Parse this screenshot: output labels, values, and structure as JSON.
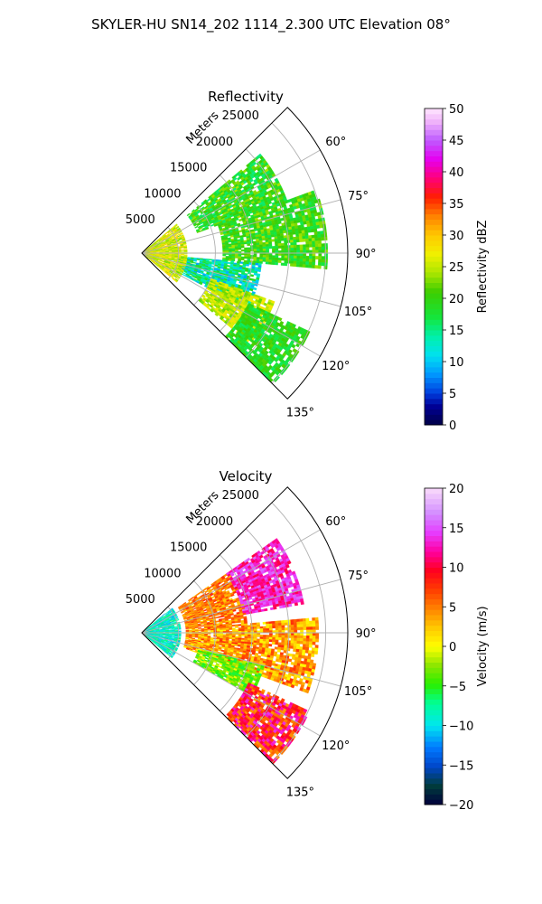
{
  "figure": {
    "title": "SKYLER-HU  SN14_202  1114_2.300 UTC Elevation 08°"
  },
  "chart_data": [
    {
      "type": "heatmap",
      "subtype": "polar-sector (PPI radar scan)",
      "title": "Reflectivity",
      "radial_axis_label": "Meters",
      "radial_ticks": [
        "5000",
        "10000",
        "15000",
        "20000",
        "25000"
      ],
      "radial_tick_values": [
        5000,
        10000,
        15000,
        20000,
        25000
      ],
      "rlim": [
        0,
        28000
      ],
      "angle_ticks": [
        "60°",
        "75°",
        "90°",
        "105°",
        "120°",
        "135°"
      ],
      "angle_tick_values": [
        60,
        75,
        90,
        105,
        120,
        135
      ],
      "angle_range_deg": [
        45,
        135
      ],
      "angle_convention": "compass degrees, clockwise from up",
      "grid": true,
      "colorbar": {
        "label": "Reflectivity dBZ",
        "ticks": [
          "0",
          "5",
          "10",
          "15",
          "20",
          "25",
          "30",
          "35",
          "40",
          "45",
          "50"
        ],
        "range": [
          0,
          50
        ],
        "colormap": "pyart_NWSRef"
      },
      "field_description_regions": [
        {
          "angle_range": [
            50,
            70
          ],
          "range_m": [
            8000,
            21000
          ],
          "value_range": [
            15,
            24
          ]
        },
        {
          "angle_range": [
            70,
            95
          ],
          "range_m": [
            11000,
            25000
          ],
          "value_range": [
            16,
            24
          ]
        },
        {
          "angle_range": [
            95,
            118
          ],
          "range_m": [
            5000,
            16000
          ],
          "value_range": [
            8,
            20
          ]
        },
        {
          "angle_range": [
            110,
            130
          ],
          "range_m": [
            10000,
            19000
          ],
          "value_range": [
            22,
            28
          ]
        },
        {
          "angle_range": [
            115,
            135
          ],
          "range_m": [
            16000,
            25000
          ],
          "value_range": [
            16,
            22
          ]
        },
        {
          "angle_range": [
            50,
            130
          ],
          "range_m": [
            0,
            6000
          ],
          "value_range": [
            22,
            30
          ]
        }
      ]
    },
    {
      "type": "heatmap",
      "subtype": "polar-sector (PPI radar scan)",
      "title": "Velocity",
      "radial_axis_label": "Meters",
      "radial_ticks": [
        "5000",
        "10000",
        "15000",
        "20000",
        "25000"
      ],
      "radial_tick_values": [
        5000,
        10000,
        15000,
        20000,
        25000
      ],
      "rlim": [
        0,
        28000
      ],
      "angle_ticks": [
        "60°",
        "75°",
        "90°",
        "105°",
        "120°",
        "135°"
      ],
      "angle_tick_values": [
        60,
        75,
        90,
        105,
        120,
        135
      ],
      "angle_range_deg": [
        45,
        135
      ],
      "angle_convention": "compass degrees, clockwise from up",
      "grid": true,
      "colorbar": {
        "label": "Velocity (m/s)",
        "ticks": [
          "−20",
          "−15",
          "−10",
          "−5",
          "0",
          "5",
          "10",
          "15",
          "20"
        ],
        "range": [
          -20,
          20
        ],
        "colormap": "pyart_BuDRd18"
      },
      "field_description_regions": [
        {
          "angle_range": [
            50,
            130
          ],
          "range_m": [
            0,
            5000
          ],
          "value_range": [
            -12,
            -6
          ]
        },
        {
          "angle_range": [
            55,
            85
          ],
          "range_m": [
            6000,
            14000
          ],
          "value_range": [
            2,
            8
          ]
        },
        {
          "angle_range": [
            55,
            80
          ],
          "range_m": [
            14000,
            22000
          ],
          "value_range": [
            10,
            16
          ]
        },
        {
          "angle_range": [
            85,
            110
          ],
          "range_m": [
            6000,
            24000
          ],
          "value_range": [
            0,
            8
          ]
        },
        {
          "angle_range": [
            105,
            120
          ],
          "range_m": [
            8000,
            17000
          ],
          "value_range": [
            -6,
            0
          ]
        },
        {
          "angle_range": [
            115,
            135
          ],
          "range_m": [
            16000,
            25000
          ],
          "value_range": [
            4,
            14
          ]
        }
      ]
    }
  ]
}
